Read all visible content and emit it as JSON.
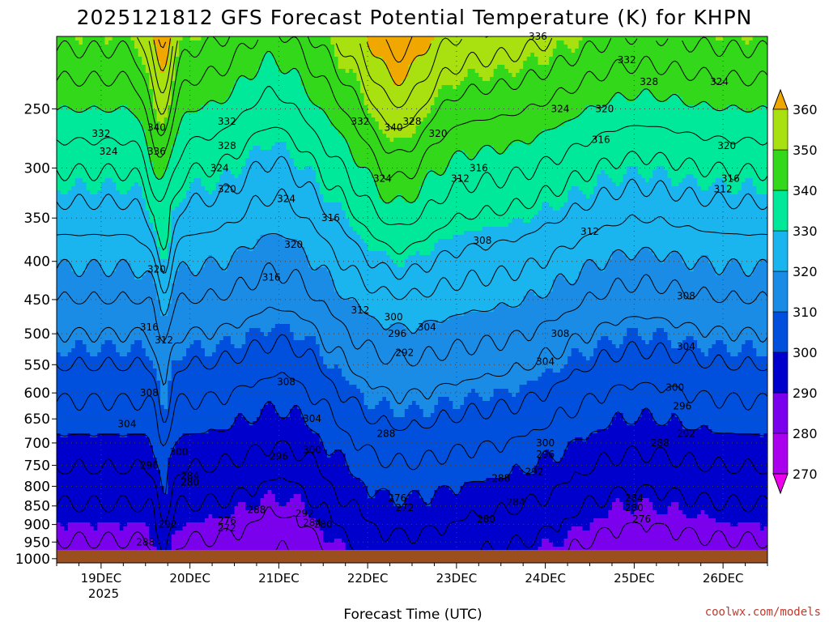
{
  "chart_data": {
    "type": "heatmap",
    "title": "2025121812 GFS Forecast Potential Temperature (K) for KHPN",
    "xlabel": "Forecast Time (UTC)",
    "ylabel": "",
    "x_ticks": [
      "19DEC",
      "20DEC",
      "21DEC",
      "22DEC",
      "23DEC",
      "24DEC",
      "25DEC",
      "26DEC"
    ],
    "x_year": "2025",
    "x_range_hours": [
      -12,
      180
    ],
    "y_ticks": [
      250,
      300,
      350,
      400,
      450,
      500,
      550,
      600,
      650,
      700,
      750,
      800,
      850,
      900,
      950,
      1000
    ],
    "y_range_hpa": [
      200,
      1013
    ],
    "y_scale": "log pressure (reversed)",
    "grid": true,
    "colorbar": {
      "levels": [
        270,
        280,
        290,
        300,
        310,
        320,
        330,
        340,
        350,
        360
      ],
      "colors": [
        "#ee00ee",
        "#aa00ee",
        "#7a00ee",
        "#0000cc",
        "#0050dd",
        "#1a8ce6",
        "#1ab4ee",
        "#00e89a",
        "#33d81a",
        "#a8e010",
        "#f5f000",
        "#f0a800"
      ],
      "extend": "both",
      "placement": "right"
    },
    "contour_interval_K": 4,
    "contour_labels": [
      {
        "t": 0,
        "p": 270,
        "v": 332
      },
      {
        "t": 2,
        "p": 285,
        "v": 324
      },
      {
        "t": 15,
        "p": 265,
        "v": 340
      },
      {
        "t": 15,
        "p": 285,
        "v": 336
      },
      {
        "t": 15,
        "p": 410,
        "v": 320
      },
      {
        "t": 13,
        "p": 490,
        "v": 316
      },
      {
        "t": 17,
        "p": 510,
        "v": 312
      },
      {
        "t": 13,
        "p": 600,
        "v": 308
      },
      {
        "t": 7,
        "p": 660,
        "v": 304
      },
      {
        "t": 13,
        "p": 750,
        "v": 296
      },
      {
        "t": 24,
        "p": 775,
        "v": 284
      },
      {
        "t": 24,
        "p": 790,
        "v": 280
      },
      {
        "t": 21,
        "p": 720,
        "v": 300
      },
      {
        "t": 12,
        "p": 950,
        "v": 288
      },
      {
        "t": 18,
        "p": 900,
        "v": 292
      },
      {
        "t": 34,
        "p": 260,
        "v": 332
      },
      {
        "t": 34,
        "p": 280,
        "v": 328
      },
      {
        "t": 32,
        "p": 300,
        "v": 324
      },
      {
        "t": 34,
        "p": 320,
        "v": 320
      },
      {
        "t": 46,
        "p": 420,
        "v": 316
      },
      {
        "t": 70,
        "p": 465,
        "v": 312
      },
      {
        "t": 50,
        "p": 330,
        "v": 324
      },
      {
        "t": 52,
        "p": 380,
        "v": 320
      },
      {
        "t": 62,
        "p": 350,
        "v": 316
      },
      {
        "t": 50,
        "p": 580,
        "v": 308
      },
      {
        "t": 57,
        "p": 650,
        "v": 304
      },
      {
        "t": 57,
        "p": 715,
        "v": 300
      },
      {
        "t": 48,
        "p": 730,
        "v": 296
      },
      {
        "t": 42,
        "p": 860,
        "v": 288
      },
      {
        "t": 55,
        "p": 870,
        "v": 292
      },
      {
        "t": 34,
        "p": 890,
        "v": 276
      },
      {
        "t": 34,
        "p": 910,
        "v": 272
      },
      {
        "t": 60,
        "p": 900,
        "v": 280
      },
      {
        "t": 57,
        "p": 895,
        "v": 284
      },
      {
        "t": 70,
        "p": 260,
        "v": 332
      },
      {
        "t": 79,
        "p": 265,
        "v": 340
      },
      {
        "t": 76,
        "p": 310,
        "v": 324
      },
      {
        "t": 91,
        "p": 270,
        "v": 320
      },
      {
        "t": 84,
        "p": 260,
        "v": 328
      },
      {
        "t": 97,
        "p": 310,
        "v": 312
      },
      {
        "t": 102,
        "p": 300,
        "v": 316
      },
      {
        "t": 103,
        "p": 375,
        "v": 308
      },
      {
        "t": 79,
        "p": 475,
        "v": 300
      },
      {
        "t": 80,
        "p": 500,
        "v": 296
      },
      {
        "t": 82,
        "p": 530,
        "v": 292
      },
      {
        "t": 88,
        "p": 490,
        "v": 304
      },
      {
        "t": 77,
        "p": 680,
        "v": 288
      },
      {
        "t": 80,
        "p": 830,
        "v": 276
      },
      {
        "t": 82,
        "p": 855,
        "v": 272
      },
      {
        "t": 104,
        "p": 885,
        "v": 280
      },
      {
        "t": 112,
        "p": 840,
        "v": 284
      },
      {
        "t": 108,
        "p": 780,
        "v": 288
      },
      {
        "t": 117,
        "p": 765,
        "v": 292
      },
      {
        "t": 120,
        "p": 725,
        "v": 296
      },
      {
        "t": 120,
        "p": 700,
        "v": 300
      },
      {
        "t": 120,
        "p": 545,
        "v": 304
      },
      {
        "t": 124,
        "p": 500,
        "v": 308
      },
      {
        "t": 132,
        "p": 365,
        "v": 312
      },
      {
        "t": 135,
        "p": 275,
        "v": 316
      },
      {
        "t": 124,
        "p": 250,
        "v": 324
      },
      {
        "t": 136,
        "p": 250,
        "v": 320
      },
      {
        "t": 148,
        "p": 230,
        "v": 328
      },
      {
        "t": 142,
        "p": 215,
        "v": 332
      },
      {
        "t": 118,
        "p": 200,
        "v": 336
      },
      {
        "t": 151,
        "p": 700,
        "v": 288
      },
      {
        "t": 144,
        "p": 830,
        "v": 284
      },
      {
        "t": 144,
        "p": 855,
        "v": 280
      },
      {
        "t": 146,
        "p": 885,
        "v": 276
      },
      {
        "t": 158,
        "p": 445,
        "v": 308
      },
      {
        "t": 158,
        "p": 520,
        "v": 304
      },
      {
        "t": 155,
        "p": 590,
        "v": 300
      },
      {
        "t": 157,
        "p": 625,
        "v": 296
      },
      {
        "t": 158,
        "p": 680,
        "v": 292
      },
      {
        "t": 167,
        "p": 230,
        "v": 324
      },
      {
        "t": 169,
        "p": 280,
        "v": 320
      },
      {
        "t": 170,
        "p": 310,
        "v": 316
      },
      {
        "t": 168,
        "p": 320,
        "v": 312
      }
    ]
  },
  "credit": "coolwx.com/models"
}
